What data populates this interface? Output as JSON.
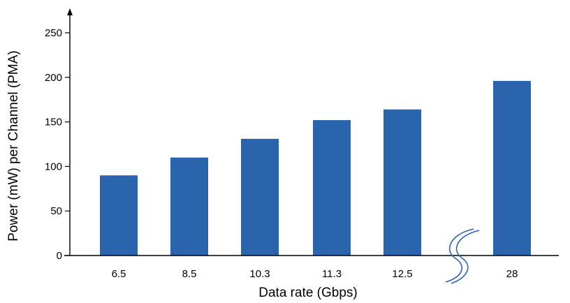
{
  "chart_data": {
    "type": "bar",
    "categories": [
      "6.5",
      "8.5",
      "10.3",
      "11.3",
      "12.5",
      "28"
    ],
    "values": [
      90,
      110,
      131,
      152,
      164,
      196
    ],
    "xlabel": "Data rate (Gbps)",
    "ylabel": "Power (mW) per Channel (PMA)",
    "ylim": [
      0,
      250
    ],
    "yticks": [
      0,
      50,
      100,
      150,
      200,
      250
    ],
    "axis_break_before": "28",
    "grid": false,
    "colors": {
      "bar": "#2a64ad",
      "axis": "#000000",
      "break_mark": "#2f5fbf"
    }
  }
}
